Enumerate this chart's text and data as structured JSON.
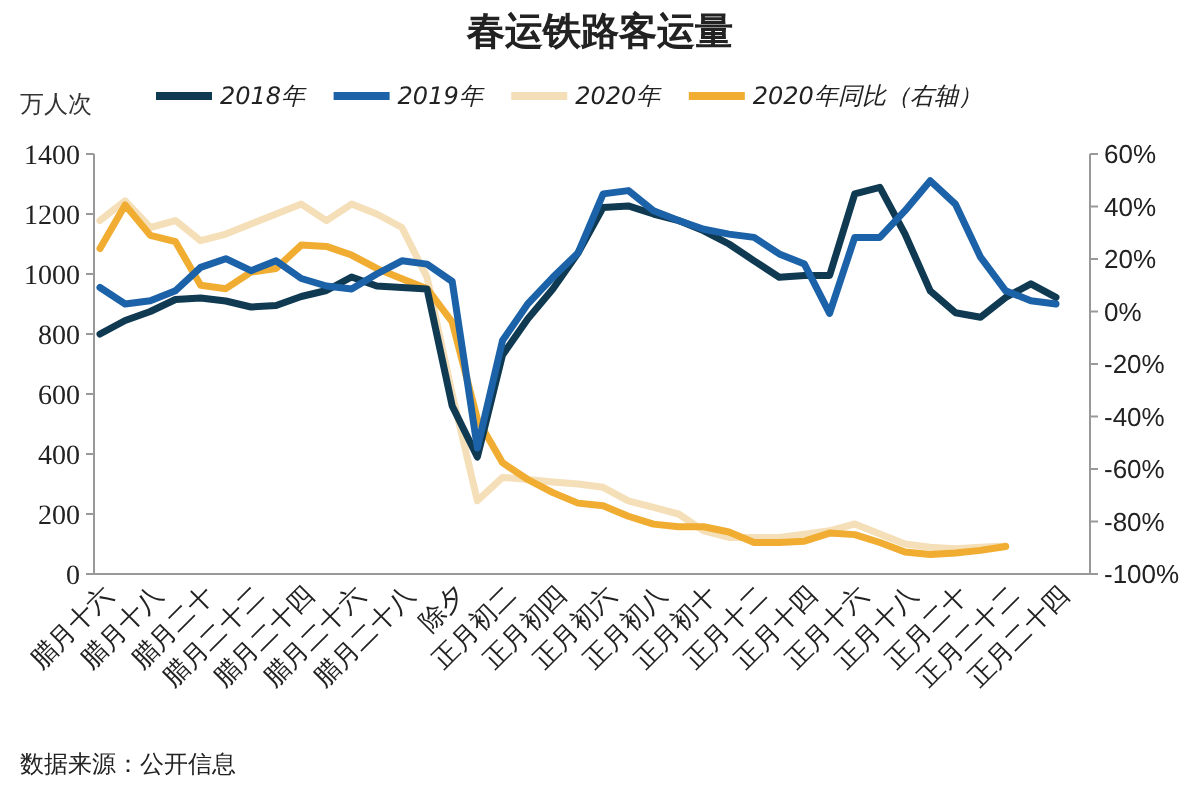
{
  "chart_data": {
    "type": "line",
    "title": "春运铁路客运量",
    "ylabel": "万人次",
    "categories": [
      "腊月十六",
      null,
      "腊月十八",
      null,
      "腊月二十",
      null,
      "腊月二十二",
      null,
      "腊月二十四",
      null,
      "腊月二十六",
      null,
      "腊月二十八",
      null,
      "除夕",
      null,
      "正月初二",
      null,
      "正月初四",
      null,
      "正月初六",
      null,
      "正月初八",
      null,
      "正月初十",
      null,
      "正月十二",
      null,
      "正月十四",
      null,
      "正月十六",
      null,
      "正月十八",
      null,
      "正月二十",
      null,
      "正月二十二",
      null,
      "正月二十四"
    ],
    "series": [
      {
        "name": "2020年",
        "color": "#f5dfb8",
        "values": [
          1178,
          1244,
          1155,
          1178,
          1111,
          1133,
          1167,
          1200,
          1233,
          1178,
          1233,
          1200,
          1155,
          989,
          600,
          244,
          322,
          315,
          307,
          300,
          289,
          244,
          222,
          200,
          144,
          122,
          122,
          122,
          133,
          144,
          167,
          133,
          100,
          89,
          84,
          89,
          93,
          null,
          null
        ]
      },
      {
        "name": "2020年同比（右轴）",
        "color": "#f0ad32",
        "axis": "y2",
        "values": [
          24,
          40.6,
          29,
          26.6,
          10,
          8.7,
          15,
          16.4,
          25.3,
          24.8,
          21.5,
          16.4,
          12.5,
          8.7,
          -4,
          -41,
          -57.6,
          -64,
          -69,
          -73,
          -74,
          -78,
          -81,
          -82,
          -82,
          -84,
          -88,
          -88,
          -87.5,
          -84.4,
          -85,
          -88,
          -91.6,
          -92.6,
          -92,
          -91,
          -89.5,
          null,
          null
        ]
      },
      {
        "name": "2018年",
        "color": "#0f3a52",
        "values": [
          800,
          845,
          875,
          915,
          920,
          910,
          890,
          895,
          925,
          945,
          990,
          960,
          955,
          950,
          560,
          390,
          730,
          850,
          950,
          1070,
          1222,
          1227,
          1200,
          1178,
          1144,
          1100,
          1044,
          989,
          995,
          995,
          1267,
          1289,
          1133,
          944,
          871,
          856,
          922,
          967,
          922
        ]
      },
      {
        "name": "2019年",
        "color": "#1c62a8",
        "values": [
          955,
          900,
          911,
          944,
          1022,
          1051,
          1011,
          1044,
          985,
          960,
          950,
          1000,
          1044,
          1033,
          975,
          420,
          778,
          900,
          989,
          1070,
          1267,
          1278,
          1211,
          1178,
          1149,
          1133,
          1122,
          1067,
          1033,
          869,
          1122,
          1122,
          1211,
          1311,
          1233,
          1056,
          944,
          911,
          900
        ]
      }
    ],
    "ylim": [
      0,
      1400
    ],
    "yticks": [
      0,
      200,
      400,
      600,
      800,
      1000,
      1200,
      1400
    ],
    "y2lim": [
      -100,
      60
    ],
    "y2ticks": [
      {
        "value": -100,
        "label": "-100%"
      },
      {
        "value": -80,
        "label": "-80%"
      },
      {
        "value": -60,
        "label": "-60%"
      },
      {
        "value": -40,
        "label": "-40%"
      },
      {
        "value": -20,
        "label": "-20%"
      },
      {
        "value": 0,
        "label": "0%"
      },
      {
        "value": 20,
        "label": "20%"
      },
      {
        "value": 40,
        "label": "40%"
      },
      {
        "value": 60,
        "label": "60%"
      }
    ],
    "legend": "top",
    "grid": false,
    "marker": "none",
    "line_style": "solid",
    "annotations": [
      "数据来源：公开信息"
    ]
  }
}
